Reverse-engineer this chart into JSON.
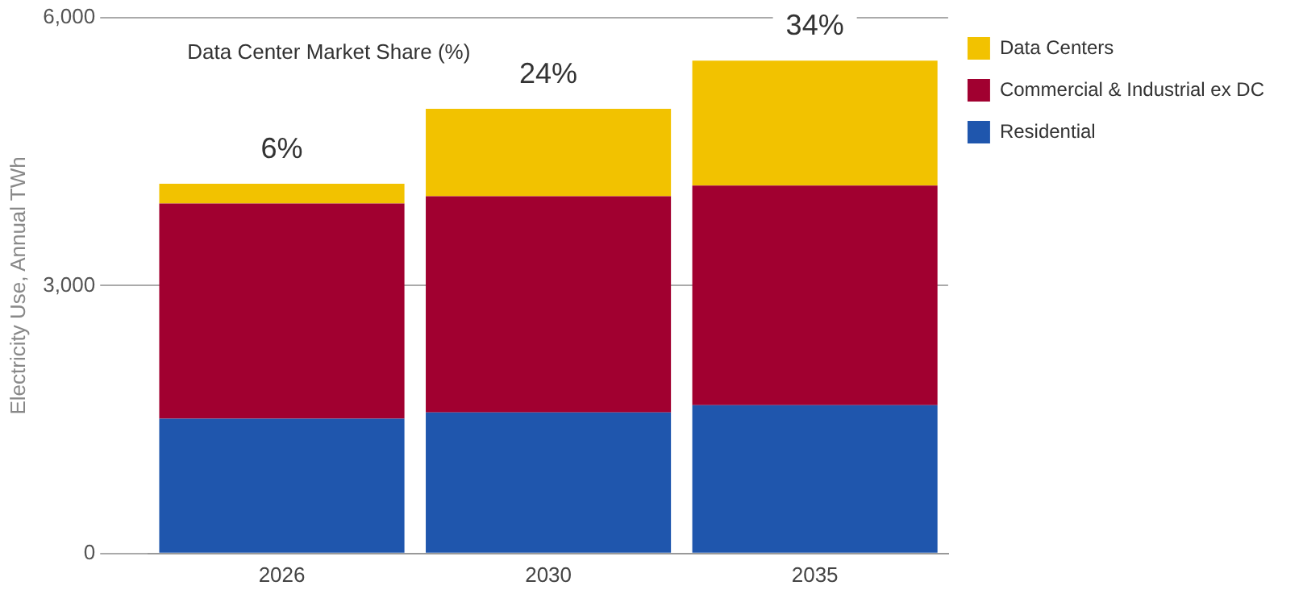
{
  "chart_data": {
    "type": "bar",
    "stacked": true,
    "ylabel": "Electricity Use, Annual TWh",
    "annotations": [
      "Data Center Market Share (%)",
      {
        "text": "6%",
        "x": "2026",
        "y": 4140
      },
      {
        "text": "24%",
        "x": "2030",
        "y": 4980
      },
      {
        "text": "34%",
        "x": "2035",
        "y": 5520
      }
    ],
    "categories": [
      "2026",
      "2030",
      "2035"
    ],
    "series": [
      {
        "name": "Residential",
        "color": "#1f56ad",
        "values": [
          1510,
          1580,
          1660
        ]
      },
      {
        "name": "Commercial & Industrial ex DC",
        "color": "#a10030",
        "values": [
          2410,
          2420,
          2460
        ]
      },
      {
        "name": "Data Centers",
        "color": "#f2c200",
        "values": [
          220,
          980,
          1400
        ]
      }
    ],
    "ylim": [
      0,
      6000
    ],
    "yticks": [
      0,
      {
        "value": 3000,
        "label": "3,000"
      },
      {
        "value": 6000,
        "label": "6,000"
      }
    ],
    "grid": "y",
    "legend": "top right"
  }
}
